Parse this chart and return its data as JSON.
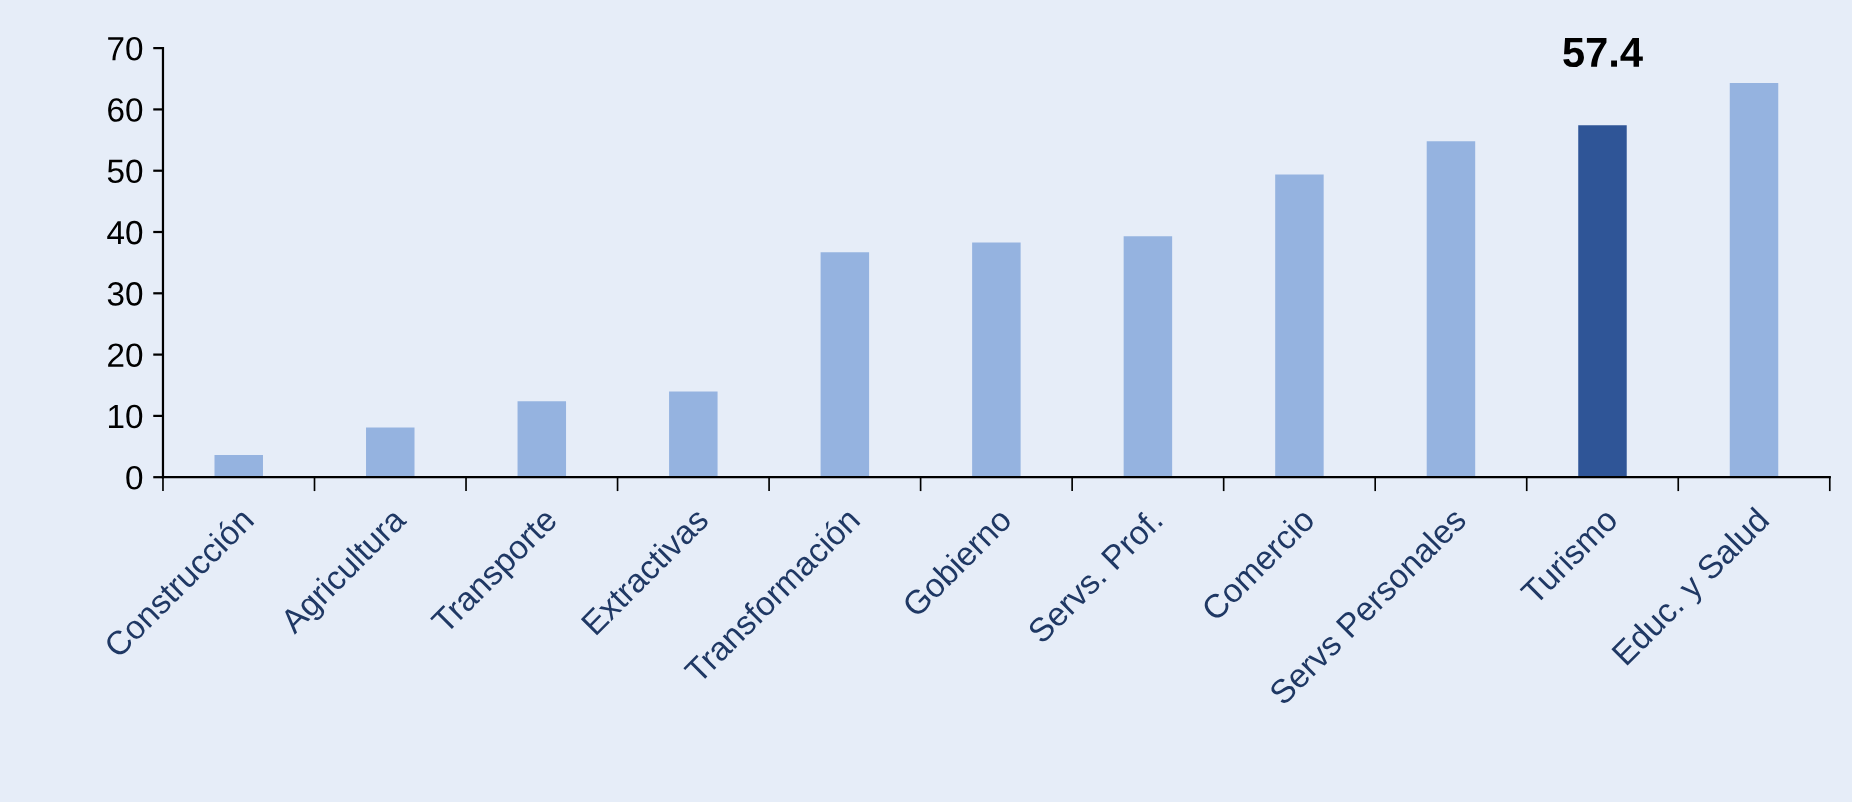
{
  "chart_data": {
    "type": "bar",
    "categories": [
      "Construcción",
      "Agricultura",
      "Transporte",
      "Extractivas",
      "Transformación",
      "Gobierno",
      "Servs. Prof.",
      "Comercio",
      "Servs Personales",
      "Turismo",
      "Educ. y Salud"
    ],
    "values": [
      3.6,
      8.1,
      12.4,
      14,
      36.7,
      38.3,
      39.3,
      49.4,
      54.8,
      57.4,
      64.3
    ],
    "colors": [
      "#95b3e0",
      "#95b3e0",
      "#95b3e0",
      "#95b3e0",
      "#95b3e0",
      "#95b3e0",
      "#95b3e0",
      "#95b3e0",
      "#95b3e0",
      "#2f5597",
      "#95b3e0"
    ],
    "value_labels": [
      null,
      null,
      null,
      null,
      null,
      null,
      null,
      null,
      null,
      "57.4",
      null
    ],
    "ylim": [
      0,
      70
    ],
    "yticks": [
      0,
      10,
      20,
      30,
      40,
      50,
      60,
      70
    ],
    "grid": false,
    "legend": false
  }
}
